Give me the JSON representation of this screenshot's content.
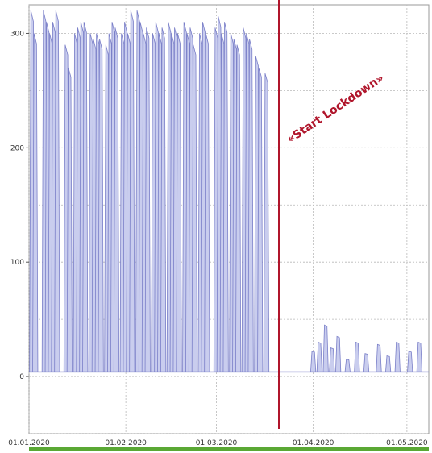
{
  "chart_data": {
    "type": "area",
    "title": "",
    "xlabel": "",
    "ylabel": "",
    "ylim": [
      -50,
      325
    ],
    "y_ticks": [
      0,
      100,
      200,
      300
    ],
    "x_ticks": [
      {
        "label": "01.01.2020",
        "date": "2020-01-01"
      },
      {
        "label": "01.02.2020",
        "date": "2020-02-01"
      },
      {
        "label": "01.03.2020",
        "date": "2020-03-01"
      },
      {
        "label": "01.04.2020",
        "date": "2020-04-01"
      },
      {
        "label": "01.05.2020",
        "date": "2020-05-01"
      }
    ],
    "xlim": [
      "2020-01-01",
      "2020-05-08"
    ],
    "grid": true,
    "series_color": "#7a7fc8",
    "fill_color": "#c9cdee",
    "baseline": 4,
    "peaks": [
      [
        "2020-01-02",
        320
      ],
      [
        "2020-01-03",
        300
      ],
      [
        "2020-01-06",
        320
      ],
      [
        "2020-01-07",
        310
      ],
      [
        "2020-01-08",
        300
      ],
      [
        "2020-01-09",
        310
      ],
      [
        "2020-01-10",
        320
      ],
      [
        "2020-01-13",
        290
      ],
      [
        "2020-01-14",
        270
      ],
      [
        "2020-01-16",
        300
      ],
      [
        "2020-01-17",
        305
      ],
      [
        "2020-01-18",
        310
      ],
      [
        "2020-01-19",
        310
      ],
      [
        "2020-01-21",
        300
      ],
      [
        "2020-01-22",
        295
      ],
      [
        "2020-01-23",
        300
      ],
      [
        "2020-01-24",
        295
      ],
      [
        "2020-01-26",
        290
      ],
      [
        "2020-01-27",
        300
      ],
      [
        "2020-01-28",
        310
      ],
      [
        "2020-01-29",
        305
      ],
      [
        "2020-01-31",
        300
      ],
      [
        "2020-02-01",
        310
      ],
      [
        "2020-02-02",
        300
      ],
      [
        "2020-02-03",
        320
      ],
      [
        "2020-02-05",
        320
      ],
      [
        "2020-02-06",
        310
      ],
      [
        "2020-02-07",
        300
      ],
      [
        "2020-02-08",
        305
      ],
      [
        "2020-02-10",
        300
      ],
      [
        "2020-02-11",
        310
      ],
      [
        "2020-02-12",
        300
      ],
      [
        "2020-02-13",
        305
      ],
      [
        "2020-02-15",
        310
      ],
      [
        "2020-02-16",
        300
      ],
      [
        "2020-02-17",
        305
      ],
      [
        "2020-02-18",
        300
      ],
      [
        "2020-02-20",
        310
      ],
      [
        "2020-02-21",
        300
      ],
      [
        "2020-02-22",
        305
      ],
      [
        "2020-02-23",
        290
      ],
      [
        "2020-02-25",
        300
      ],
      [
        "2020-02-26",
        310
      ],
      [
        "2020-02-27",
        300
      ],
      [
        "2020-03-01",
        305
      ],
      [
        "2020-03-02",
        315
      ],
      [
        "2020-03-03",
        300
      ],
      [
        "2020-03-04",
        310
      ],
      [
        "2020-03-06",
        300
      ],
      [
        "2020-03-07",
        295
      ],
      [
        "2020-03-08",
        290
      ],
      [
        "2020-03-10",
        305
      ],
      [
        "2020-03-11",
        300
      ],
      [
        "2020-03-12",
        295
      ],
      [
        "2020-03-14",
        280
      ],
      [
        "2020-03-15",
        270
      ],
      [
        "2020-03-17",
        265
      ],
      [
        "2020-04-01",
        22
      ],
      [
        "2020-04-03",
        30
      ],
      [
        "2020-04-05",
        45
      ],
      [
        "2020-04-07",
        25
      ],
      [
        "2020-04-09",
        35
      ],
      [
        "2020-04-12",
        15
      ],
      [
        "2020-04-15",
        30
      ],
      [
        "2020-04-18",
        20
      ],
      [
        "2020-04-22",
        28
      ],
      [
        "2020-04-25",
        18
      ],
      [
        "2020-04-28",
        30
      ],
      [
        "2020-05-02",
        22
      ],
      [
        "2020-05-05",
        30
      ]
    ],
    "annotations": [
      {
        "text": "«Start Lockdown»",
        "date": "2020-03-21",
        "color": "#b0152b"
      }
    ]
  }
}
